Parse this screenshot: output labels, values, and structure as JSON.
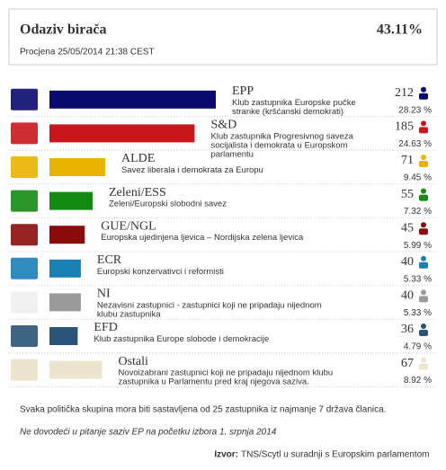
{
  "chart_data": {
    "type": "bar",
    "orientation": "horizontal",
    "title": "Odaziv birača",
    "turnout": "43.11%",
    "subtitle": "Procjena 25/05/2014 21:38 CEST",
    "categories": [
      "EPP",
      "S&D",
      "ALDE",
      "Zeleni/ESS",
      "GUE/NGL",
      "ECR",
      "NI",
      "EFD",
      "Ostali"
    ],
    "descriptions": [
      "Klub zastupnika Europske pučke stranke (kršćanski demokrati)",
      "Klub zastupnika Progresivnog saveza socijalista i demokrata u Europskom parlamentu",
      "Savez liberala i demokrata za Europu",
      "Zeleni/Europski slobodni savez",
      "Europska ujedinjena ljevica – Nordijska zelena ljevica",
      "Europski konzervativci i reformisti",
      "Nezavisni zastupnici - zastupnici koji ne pripadaju nijednom klubu zastupnika",
      "Klub zastupnika Europe slobode i demokracije",
      "Novoizabrani zastupnici koji ne pripadaju nijednom klubu zastupnika u Parlamentu pred kraj njegova saziva."
    ],
    "values": [
      212,
      185,
      71,
      55,
      45,
      40,
      40,
      36,
      67
    ],
    "shares": [
      "28.23 %",
      "24.63 %",
      "9.45 %",
      "7.32 %",
      "5.99 %",
      "5.33 %",
      "5.33 %",
      "4.79 %",
      "8.92 %"
    ],
    "colors": [
      "#0a0a6e",
      "#c8161d",
      "#e8b400",
      "#138a13",
      "#8b0a0a",
      "#1a7fb5",
      "#9a9a9a",
      "#2a5478",
      "#ece4cf"
    ],
    "notes": [
      "Svaka politička skupina mora biti sastavljena od 25 zastupnika iz najmanje 7 država članica.",
      "Ne dovodeći u pitanje saziv EP na početku izbora 1. srpnja 2014"
    ],
    "source_label": "Izvor:",
    "source": "TNS/Scytl u suradnji s Europskim parlamentom"
  }
}
